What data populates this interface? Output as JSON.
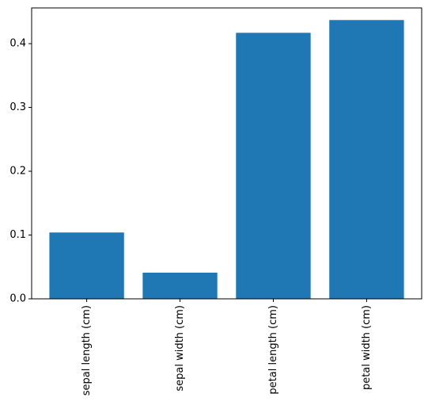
{
  "chart_data": {
    "type": "bar",
    "categories": [
      "sepal length (cm)",
      "sepal width (cm)",
      "petal length (cm)",
      "petal width (cm)"
    ],
    "values": [
      0.104,
      0.041,
      0.417,
      0.437
    ],
    "color": "#1f77b4",
    "ylim": [
      0,
      0.456
    ],
    "yticks": [
      {
        "value": 0,
        "label": "0.0"
      },
      0.1,
      0.2,
      0.3,
      0.4
    ]
  }
}
